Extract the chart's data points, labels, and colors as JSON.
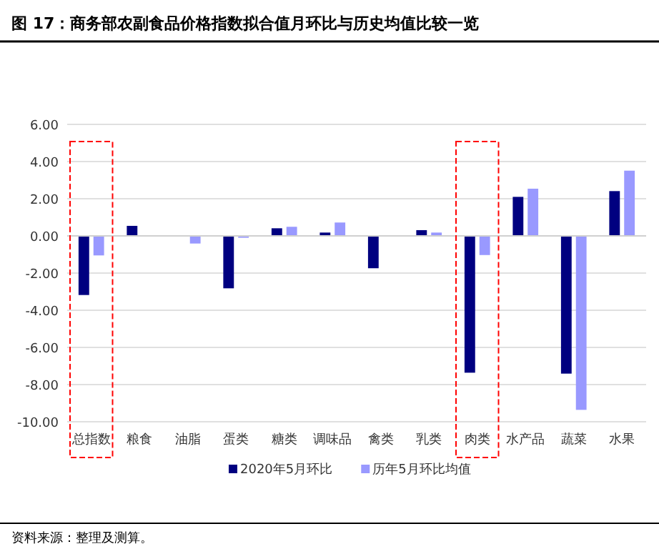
{
  "chart_data": {
    "type": "bar",
    "title": "图 17：商务部农副食品价格指数拟合值月环比与历史均值比较一览",
    "categories": [
      "总指数",
      "粮食",
      "油脂",
      "蛋类",
      "糖类",
      "调味品",
      "禽类",
      "乳类",
      "肉类",
      "水产品",
      "蔬菜",
      "水果"
    ],
    "series": [
      {
        "name": "2020年5月环比",
        "color": "#000080",
        "values": [
          -3.18,
          0.54,
          null,
          -2.82,
          0.41,
          0.18,
          -1.74,
          0.31,
          -7.36,
          2.1,
          -7.41,
          2.41
        ]
      },
      {
        "name": "历年5月环比均值",
        "color": "#9999ff",
        "values": [
          -1.05,
          null,
          -0.41,
          -0.1,
          0.49,
          0.72,
          null,
          0.18,
          -1.03,
          2.54,
          -9.36,
          3.51
        ]
      }
    ],
    "ylim": [
      -10,
      6
    ],
    "yticks": [
      {
        "value": -10,
        "label": "-10.00"
      },
      {
        "value": -8,
        "label": "-8.00"
      },
      {
        "value": -6,
        "label": "-6.00"
      },
      {
        "value": -4,
        "label": "-4.00"
      },
      {
        "value": -2,
        "label": "-2.00"
      },
      {
        "value": 0,
        "label": "0.00"
      },
      {
        "value": 2,
        "label": "2.00"
      },
      {
        "value": 4,
        "label": "4.00"
      },
      {
        "value": 6,
        "label": "6.00"
      }
    ],
    "grid": "y",
    "legend": "bottom",
    "annotations": [
      "资料来源：整理及测算。"
    ]
  }
}
